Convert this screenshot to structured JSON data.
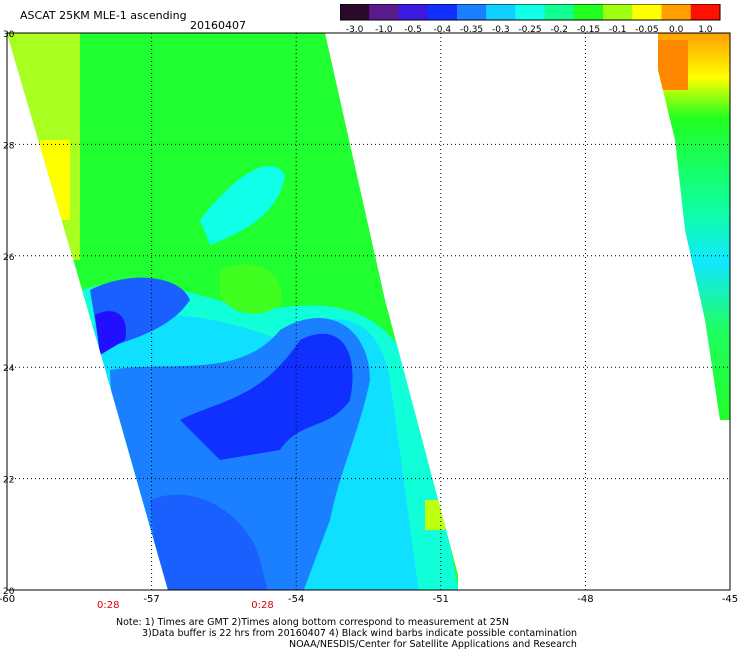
{
  "header": {
    "title": "ASCAT 25KM MLE-1 ascending",
    "date": "20160407"
  },
  "colorbar": {
    "tick_labels": [
      "-3.0",
      "-1.0",
      "-0.5",
      "-0.4",
      "-0.35",
      "-0.3",
      "-0.25",
      "-0.2",
      "-0.15",
      "-0.1",
      "-0.05",
      "0.0",
      "1.0"
    ],
    "colors": [
      "#2a0a2a",
      "#5a1a8c",
      "#3a1ae0",
      "#1030ff",
      "#1a80ff",
      "#10d0ff",
      "#10ffe8",
      "#10ff90",
      "#20ff20",
      "#a0ff10",
      "#ffff00",
      "#ffa000",
      "#ff1000"
    ]
  },
  "axes": {
    "lon_labels": [
      "-60",
      "-57",
      "-54",
      "-51",
      "-48",
      "-45"
    ],
    "lat_labels": [
      "30",
      "28",
      "26",
      "24",
      "22",
      "20"
    ],
    "lon_range": [
      -60,
      -45
    ],
    "lat_range": [
      20,
      30
    ]
  },
  "time_labels": [
    {
      "text": "0:28",
      "lon": -57.9
    },
    {
      "text": "0:28",
      "lon": -54.7
    }
  ],
  "notes": {
    "line1": "Note: 1) Times are GMT 2)Times along bottom correspond to measurement at 25N",
    "line2": "3)Data buffer is 22 hrs from 20160407 4) Black wind barbs indicate possible contamination",
    "line3": "NOAA/NESDIS/Center for Satellite Applications and Research"
  }
}
